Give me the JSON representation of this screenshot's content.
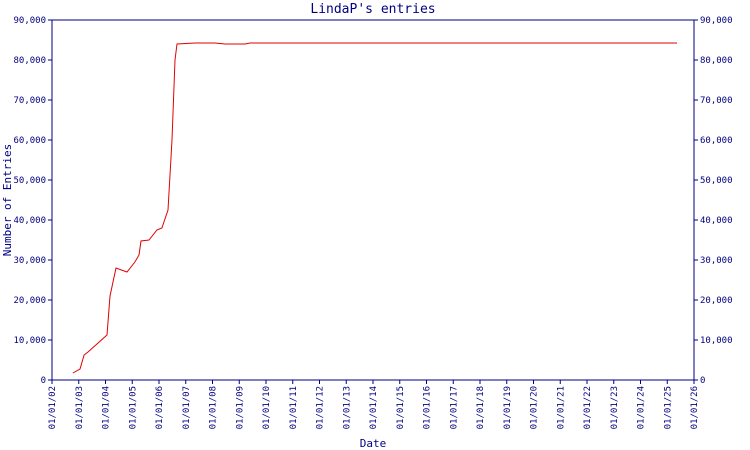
{
  "chart_data": {
    "type": "line",
    "title": "LindaP's entries",
    "x_label": "Date",
    "y_label": "Number of Entries",
    "x": [
      "10/13/02",
      "01/18/03",
      "03/13/03",
      "05/06/03",
      "01/21/04",
      "03/02/04",
      "05/23/04",
      "10/20/04",
      "02/07/05",
      "04/02/05",
      "04/29/05",
      "08/16/05",
      "12/03/05",
      "02/10/06",
      "05/02/06",
      "06/26/06",
      "08/06/06",
      "09/03/06",
      "05/06/07",
      "02/03/08",
      "06/19/08",
      "03/18/09",
      "05/26/09",
      "05/13/25"
    ],
    "series": [
      {
        "name": "LindaP",
        "color": "#e00000",
        "values": [
          1750,
          2750,
          6250,
          7000,
          11250,
          21000,
          28000,
          27000,
          29500,
          31250,
          34750,
          35000,
          37500,
          38000,
          42500,
          60000,
          80000,
          84000,
          84250,
          84250,
          84000,
          84000,
          84250,
          84250
        ]
      }
    ],
    "xlim": [
      "01/01/02",
      "01/01/26"
    ],
    "xticks": [
      "01/01/02",
      "01/01/03",
      "01/01/04",
      "01/01/05",
      "01/01/06",
      "01/01/07",
      "01/01/08",
      "01/01/09",
      "01/01/10",
      "01/01/11",
      "01/01/12",
      "01/01/13",
      "01/01/14",
      "01/01/15",
      "01/01/16",
      "01/01/17",
      "01/01/18",
      "01/01/19",
      "01/01/20",
      "01/01/21",
      "01/01/22",
      "01/01/23",
      "01/01/24",
      "01/01/25",
      "01/01/26"
    ],
    "ylim": [
      0,
      90000
    ],
    "yticks": [
      0,
      {
        "value": 10000,
        "label": "10,000"
      },
      {
        "value": 20000,
        "label": "20,000"
      },
      {
        "value": 30000,
        "label": "30,000"
      },
      {
        "value": 40000,
        "label": "40,000"
      },
      {
        "value": 50000,
        "label": "50,000"
      },
      {
        "value": 60000,
        "label": "60,000"
      },
      {
        "value": 70000,
        "label": "70,000"
      },
      {
        "value": 80000,
        "label": "80,000"
      },
      {
        "value": 90000,
        "label": "90,000"
      }
    ],
    "axis_color": "#000080"
  }
}
